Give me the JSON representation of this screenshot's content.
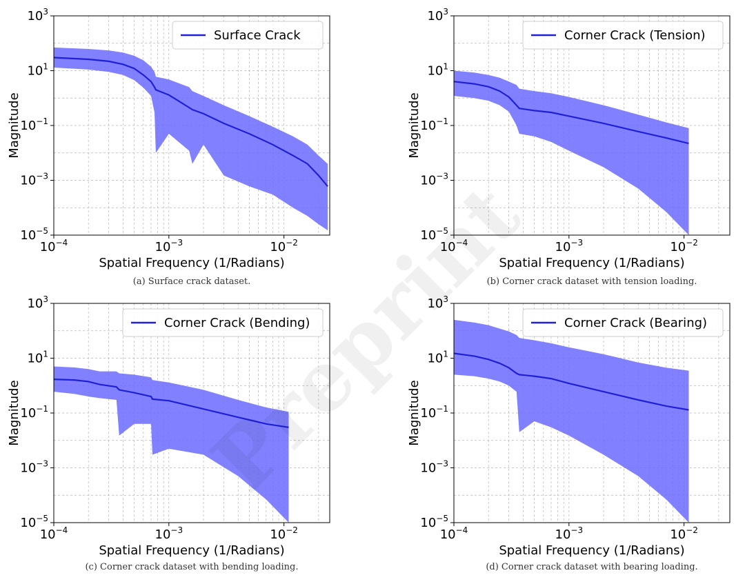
{
  "watermark": "Preprint",
  "chart_data": [
    {
      "id": "a",
      "type": "area",
      "caption": "(a) Surface crack dataset.",
      "xlabel": "Spatial Frequency (1/Radians)",
      "ylabel": "Magnitude",
      "xscale": "log",
      "yscale": "log",
      "xlim": [
        0.0001,
        0.025
      ],
      "ylim": [
        1e-05,
        1000
      ],
      "x_ticks": [
        0.0001,
        0.001,
        0.01
      ],
      "x_tick_labels": [
        {
          "base": "10",
          "exp": "−4"
        },
        {
          "base": "10",
          "exp": "−3"
        },
        {
          "base": "10",
          "exp": "−2"
        }
      ],
      "y_ticks": [
        1e-05,
        0.001,
        0.1,
        10,
        1000
      ],
      "y_tick_labels": [
        {
          "base": "10",
          "exp": "−5"
        },
        {
          "base": "10",
          "exp": "−3"
        },
        {
          "base": "10",
          "exp": "−1"
        },
        {
          "base": "10",
          "exp": "1"
        },
        {
          "base": "10",
          "exp": "3"
        }
      ],
      "grid": true,
      "legend": {
        "label": "Surface Crack",
        "placement": "top-right"
      },
      "line_color": "#1f1fd6",
      "band_color": "#6b6bff",
      "series": [
        {
          "name": "Surface Crack",
          "x": [
            0.0001,
            0.0002,
            0.0003,
            0.0004,
            0.0005,
            0.0006,
            0.0007,
            0.00075,
            0.00077,
            0.001,
            0.0015,
            0.0016,
            0.002,
            0.003,
            0.005,
            0.008,
            0.012,
            0.016,
            0.02,
            0.024
          ],
          "mean": [
            30,
            26,
            22,
            17,
            12,
            7,
            4,
            2.5,
            2.0,
            1.3,
            0.45,
            0.38,
            0.27,
            0.12,
            0.05,
            0.02,
            0.008,
            0.004,
            0.0015,
            0.0006
          ],
          "upper": [
            70,
            62,
            55,
            46,
            35,
            24,
            14,
            9,
            6,
            4.8,
            2.5,
            1.8,
            1.2,
            0.55,
            0.22,
            0.09,
            0.04,
            0.02,
            0.008,
            0.004
          ],
          "lower": [
            13,
            11,
            9,
            7,
            4.5,
            2.4,
            1.2,
            0.3,
            0.01,
            0.05,
            0.012,
            0.004,
            0.02,
            0.0015,
            0.0006,
            0.0003,
            0.0001,
            5e-05,
            2.5e-05,
            1.5e-05
          ]
        }
      ]
    },
    {
      "id": "b",
      "type": "area",
      "caption": "(b) Corner crack dataset with tension loading.",
      "xlabel": "Spatial Frequency (1/Radians)",
      "ylabel": "Magnitude",
      "xscale": "log",
      "yscale": "log",
      "xlim": [
        0.0001,
        0.025
      ],
      "ylim": [
        1e-05,
        1000
      ],
      "x_ticks": [
        0.0001,
        0.001,
        0.01
      ],
      "x_tick_labels": [
        {
          "base": "10",
          "exp": "−4"
        },
        {
          "base": "10",
          "exp": "−3"
        },
        {
          "base": "10",
          "exp": "−2"
        }
      ],
      "y_ticks": [
        1e-05,
        0.001,
        0.1,
        10,
        1000
      ],
      "y_tick_labels": [
        {
          "base": "10",
          "exp": "−5"
        },
        {
          "base": "10",
          "exp": "−3"
        },
        {
          "base": "10",
          "exp": "−1"
        },
        {
          "base": "10",
          "exp": "1"
        },
        {
          "base": "10",
          "exp": "3"
        }
      ],
      "grid": true,
      "legend": {
        "label": "Corner Crack (Tension)",
        "placement": "top-right"
      },
      "line_color": "#1f1fd6",
      "band_color": "#6b6bff",
      "series": [
        {
          "name": "Corner Crack (Tension)",
          "x": [
            0.0001,
            0.00015,
            0.0002,
            0.00025,
            0.0003,
            0.00035,
            0.00037,
            0.0005,
            0.0007,
            0.001,
            0.002,
            0.004,
            0.007,
            0.011
          ],
          "mean": [
            4,
            3.3,
            2.6,
            1.8,
            1.1,
            0.55,
            0.42,
            0.35,
            0.3,
            0.22,
            0.12,
            0.06,
            0.035,
            0.022
          ],
          "upper": [
            10,
            8.5,
            7,
            5.5,
            4,
            3,
            2.2,
            1.8,
            1.5,
            1.1,
            0.55,
            0.25,
            0.13,
            0.08
          ],
          "lower": [
            1.2,
            1.0,
            0.8,
            0.55,
            0.32,
            0.1,
            0.05,
            0.04,
            0.025,
            0.012,
            0.003,
            0.0005,
            7e-05,
            1e-05
          ]
        }
      ]
    },
    {
      "id": "c",
      "type": "area",
      "caption": "(c) Corner crack dataset with bending loading.",
      "xlabel": "Spatial Frequency (1/Radians)",
      "ylabel": "Magnitude",
      "xscale": "log",
      "yscale": "log",
      "xlim": [
        0.0001,
        0.025
      ],
      "ylim": [
        1e-05,
        1000
      ],
      "x_ticks": [
        0.0001,
        0.001,
        0.01
      ],
      "x_tick_labels": [
        {
          "base": "10",
          "exp": "−4"
        },
        {
          "base": "10",
          "exp": "−3"
        },
        {
          "base": "10",
          "exp": "−2"
        }
      ],
      "y_ticks": [
        1e-05,
        0.001,
        0.1,
        10,
        1000
      ],
      "y_tick_labels": [
        {
          "base": "10",
          "exp": "−5"
        },
        {
          "base": "10",
          "exp": "−3"
        },
        {
          "base": "10",
          "exp": "−1"
        },
        {
          "base": "10",
          "exp": "1"
        },
        {
          "base": "10",
          "exp": "3"
        }
      ],
      "grid": true,
      "legend": {
        "label": "Corner Crack (Bending)",
        "placement": "top-right"
      },
      "line_color": "#1f1fd6",
      "band_color": "#6b6bff",
      "series": [
        {
          "name": "Corner Crack (Bending)",
          "x": [
            0.0001,
            0.00015,
            0.0002,
            0.00025,
            0.00035,
            0.00037,
            0.0005,
            0.0007,
            0.00072,
            0.001,
            0.002,
            0.004,
            0.007,
            0.011
          ],
          "mean": [
            1.7,
            1.6,
            1.4,
            1.1,
            0.9,
            0.7,
            0.55,
            0.4,
            0.32,
            0.28,
            0.14,
            0.07,
            0.04,
            0.03
          ],
          "upper": [
            5,
            4.6,
            4,
            3.3,
            3.3,
            2.8,
            2.5,
            2.0,
            1.6,
            1.3,
            0.7,
            0.3,
            0.16,
            0.11
          ],
          "lower": [
            0.6,
            0.5,
            0.4,
            0.35,
            0.3,
            0.015,
            0.04,
            0.04,
            0.003,
            0.005,
            0.003,
            0.0005,
            7e-05,
            1e-05
          ]
        }
      ]
    },
    {
      "id": "d",
      "type": "area",
      "caption": "(d) Corner crack dataset with bearing loading.",
      "xlabel": "Spatial Frequency (1/Radians)",
      "ylabel": "Magnitude",
      "xscale": "log",
      "yscale": "log",
      "xlim": [
        0.0001,
        0.025
      ],
      "ylim": [
        1e-05,
        1000
      ],
      "x_ticks": [
        0.0001,
        0.001,
        0.01
      ],
      "x_tick_labels": [
        {
          "base": "10",
          "exp": "−4"
        },
        {
          "base": "10",
          "exp": "−3"
        },
        {
          "base": "10",
          "exp": "−2"
        }
      ],
      "y_ticks": [
        1e-05,
        0.001,
        0.1,
        10,
        1000
      ],
      "y_tick_labels": [
        {
          "base": "10",
          "exp": "−5"
        },
        {
          "base": "10",
          "exp": "−3"
        },
        {
          "base": "10",
          "exp": "−1"
        },
        {
          "base": "10",
          "exp": "1"
        },
        {
          "base": "10",
          "exp": "3"
        }
      ],
      "grid": true,
      "legend": {
        "label": "Corner Crack (Bearing)",
        "placement": "top-right"
      },
      "line_color": "#1f1fd6",
      "band_color": "#6b6bff",
      "series": [
        {
          "name": "Corner Crack (Bearing)",
          "x": [
            0.0001,
            0.00015,
            0.0002,
            0.00025,
            0.0003,
            0.00035,
            0.00037,
            0.0005,
            0.0007,
            0.001,
            0.002,
            0.004,
            0.007,
            0.011
          ],
          "mean": [
            15,
            12,
            9,
            6.5,
            4.5,
            2.8,
            2.5,
            2.2,
            1.8,
            1.2,
            0.6,
            0.3,
            0.18,
            0.13
          ],
          "upper": [
            250,
            200,
            160,
            120,
            95,
            70,
            55,
            45,
            35,
            25,
            14,
            7,
            4.5,
            3.5
          ],
          "lower": [
            2.5,
            2.2,
            1.8,
            1.4,
            1.0,
            0.6,
            0.02,
            0.05,
            0.03,
            0.015,
            0.003,
            0.0005,
            7e-05,
            1e-05
          ]
        }
      ]
    }
  ]
}
